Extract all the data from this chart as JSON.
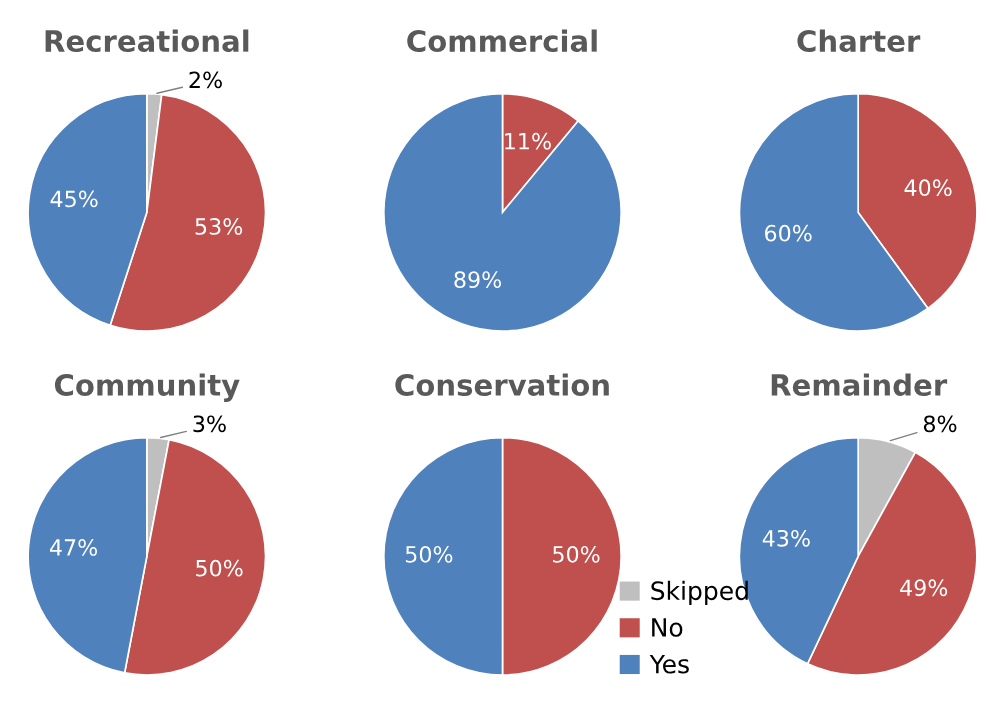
{
  "chart_data": [
    {
      "type": "pie",
      "title": "Recreational",
      "categories": [
        null,
        null,
        null
      ],
      "values": [
        2,
        53,
        45
      ],
      "colors": [
        "#bfbfbf",
        "#c0504d",
        "#4f81bd"
      ],
      "value_labels": [
        "2%",
        "53%",
        "45%"
      ]
    },
    {
      "type": "pie",
      "title": "Commercial",
      "categories": [
        null,
        null
      ],
      "values": [
        11,
        89
      ],
      "colors": [
        "#c0504d",
        "#4f81bd"
      ],
      "value_labels": [
        "11%",
        "89%"
      ]
    },
    {
      "type": "pie",
      "title": "Charter",
      "categories": [
        null,
        null
      ],
      "values": [
        40,
        60
      ],
      "colors": [
        "#c0504d",
        "#4f81bd"
      ],
      "value_labels": [
        "40%",
        "60%"
      ]
    },
    {
      "type": "pie",
      "title": "Community",
      "categories": [
        null,
        null,
        null
      ],
      "values": [
        3,
        50,
        47
      ],
      "colors": [
        "#bfbfbf",
        "#c0504d",
        "#4f81bd"
      ],
      "value_labels": [
        "3%",
        "50%",
        "47%"
      ]
    },
    {
      "type": "pie",
      "title": "Conservation",
      "categories": [
        "Skipped",
        "No",
        "Yes"
      ],
      "values": [
        0,
        50,
        50
      ],
      "colors": [
        "#bfbfbf",
        "#c0504d",
        "#4f81bd"
      ],
      "value_labels": [
        null,
        "50%",
        "50%"
      ],
      "legend": "bottom right"
    },
    {
      "type": "pie",
      "title": "Remainder",
      "categories": [
        null,
        null,
        null
      ],
      "values": [
        8,
        49,
        43
      ],
      "colors": [
        "#bfbfbf",
        "#c0504d",
        "#4f81bd"
      ],
      "value_labels": [
        "8%",
        "49%",
        "43%"
      ]
    }
  ]
}
